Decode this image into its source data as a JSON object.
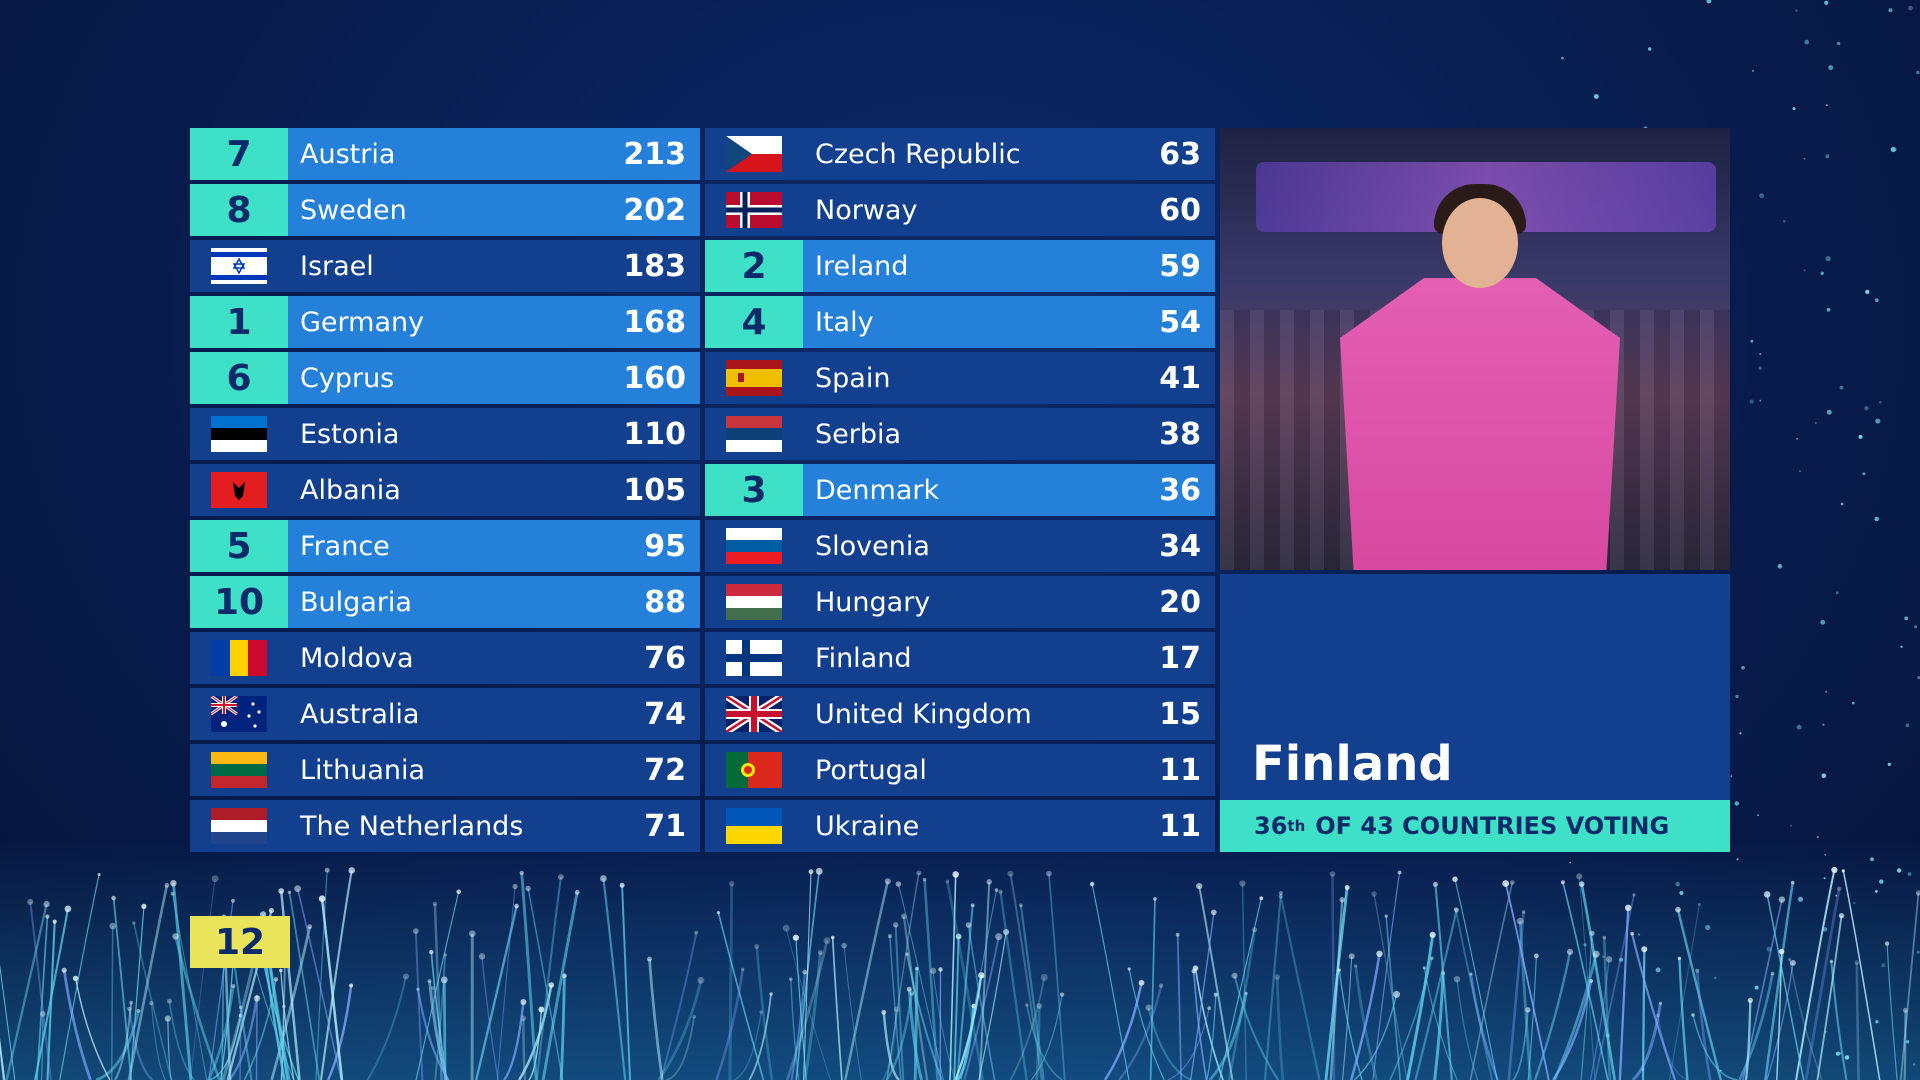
{
  "left_column": [
    {
      "points": "7",
      "country": "Austria",
      "score": "213",
      "flag": "austria"
    },
    {
      "points": "8",
      "country": "Sweden",
      "score": "202",
      "flag": "sweden"
    },
    {
      "points": "",
      "country": "Israel",
      "score": "183",
      "flag": "israel"
    },
    {
      "points": "1",
      "country": "Germany",
      "score": "168",
      "flag": "germany"
    },
    {
      "points": "6",
      "country": "Cyprus",
      "score": "160",
      "flag": "cyprus"
    },
    {
      "points": "",
      "country": "Estonia",
      "score": "110",
      "flag": "estonia"
    },
    {
      "points": "",
      "country": "Albania",
      "score": "105",
      "flag": "albania"
    },
    {
      "points": "5",
      "country": "France",
      "score": "95",
      "flag": "france"
    },
    {
      "points": "10",
      "country": "Bulgaria",
      "score": "88",
      "flag": "bulgaria"
    },
    {
      "points": "",
      "country": "Moldova",
      "score": "76",
      "flag": "moldova"
    },
    {
      "points": "",
      "country": "Australia",
      "score": "74",
      "flag": "australia"
    },
    {
      "points": "",
      "country": "Lithuania",
      "score": "72",
      "flag": "lithuania"
    },
    {
      "points": "",
      "country": "The Netherlands",
      "score": "71",
      "flag": "netherlands"
    }
  ],
  "right_column": [
    {
      "points": "",
      "country": "Czech Republic",
      "score": "63",
      "flag": "czech"
    },
    {
      "points": "",
      "country": "Norway",
      "score": "60",
      "flag": "norway"
    },
    {
      "points": "2",
      "country": "Ireland",
      "score": "59",
      "flag": "ireland"
    },
    {
      "points": "4",
      "country": "Italy",
      "score": "54",
      "flag": "italy"
    },
    {
      "points": "",
      "country": "Spain",
      "score": "41",
      "flag": "spain"
    },
    {
      "points": "",
      "country": "Serbia",
      "score": "38",
      "flag": "serbia"
    },
    {
      "points": "3",
      "country": "Denmark",
      "score": "36",
      "flag": "denmark"
    },
    {
      "points": "",
      "country": "Slovenia",
      "score": "34",
      "flag": "slovenia"
    },
    {
      "points": "",
      "country": "Hungary",
      "score": "20",
      "flag": "hungary"
    },
    {
      "points": "",
      "country": "Finland",
      "score": "17",
      "flag": "finland"
    },
    {
      "points": "",
      "country": "United Kingdom",
      "score": "15",
      "flag": "uk"
    },
    {
      "points": "",
      "country": "Portugal",
      "score": "11",
      "flag": "portugal"
    },
    {
      "points": "",
      "country": "Ukraine",
      "score": "11",
      "flag": "ukraine"
    }
  ],
  "spokesperson": {
    "country": "Finland",
    "position": "36",
    "ordinal_suffix": "th",
    "voting_text": "OF 43 COUNTRIES VOTING"
  },
  "next_points": "12",
  "colors": {
    "voted_row": "#2480d8",
    "unvoted_row": "#123f8e",
    "points_badge": "#3fe0c8",
    "next_points_badge": "#e9e45a"
  }
}
